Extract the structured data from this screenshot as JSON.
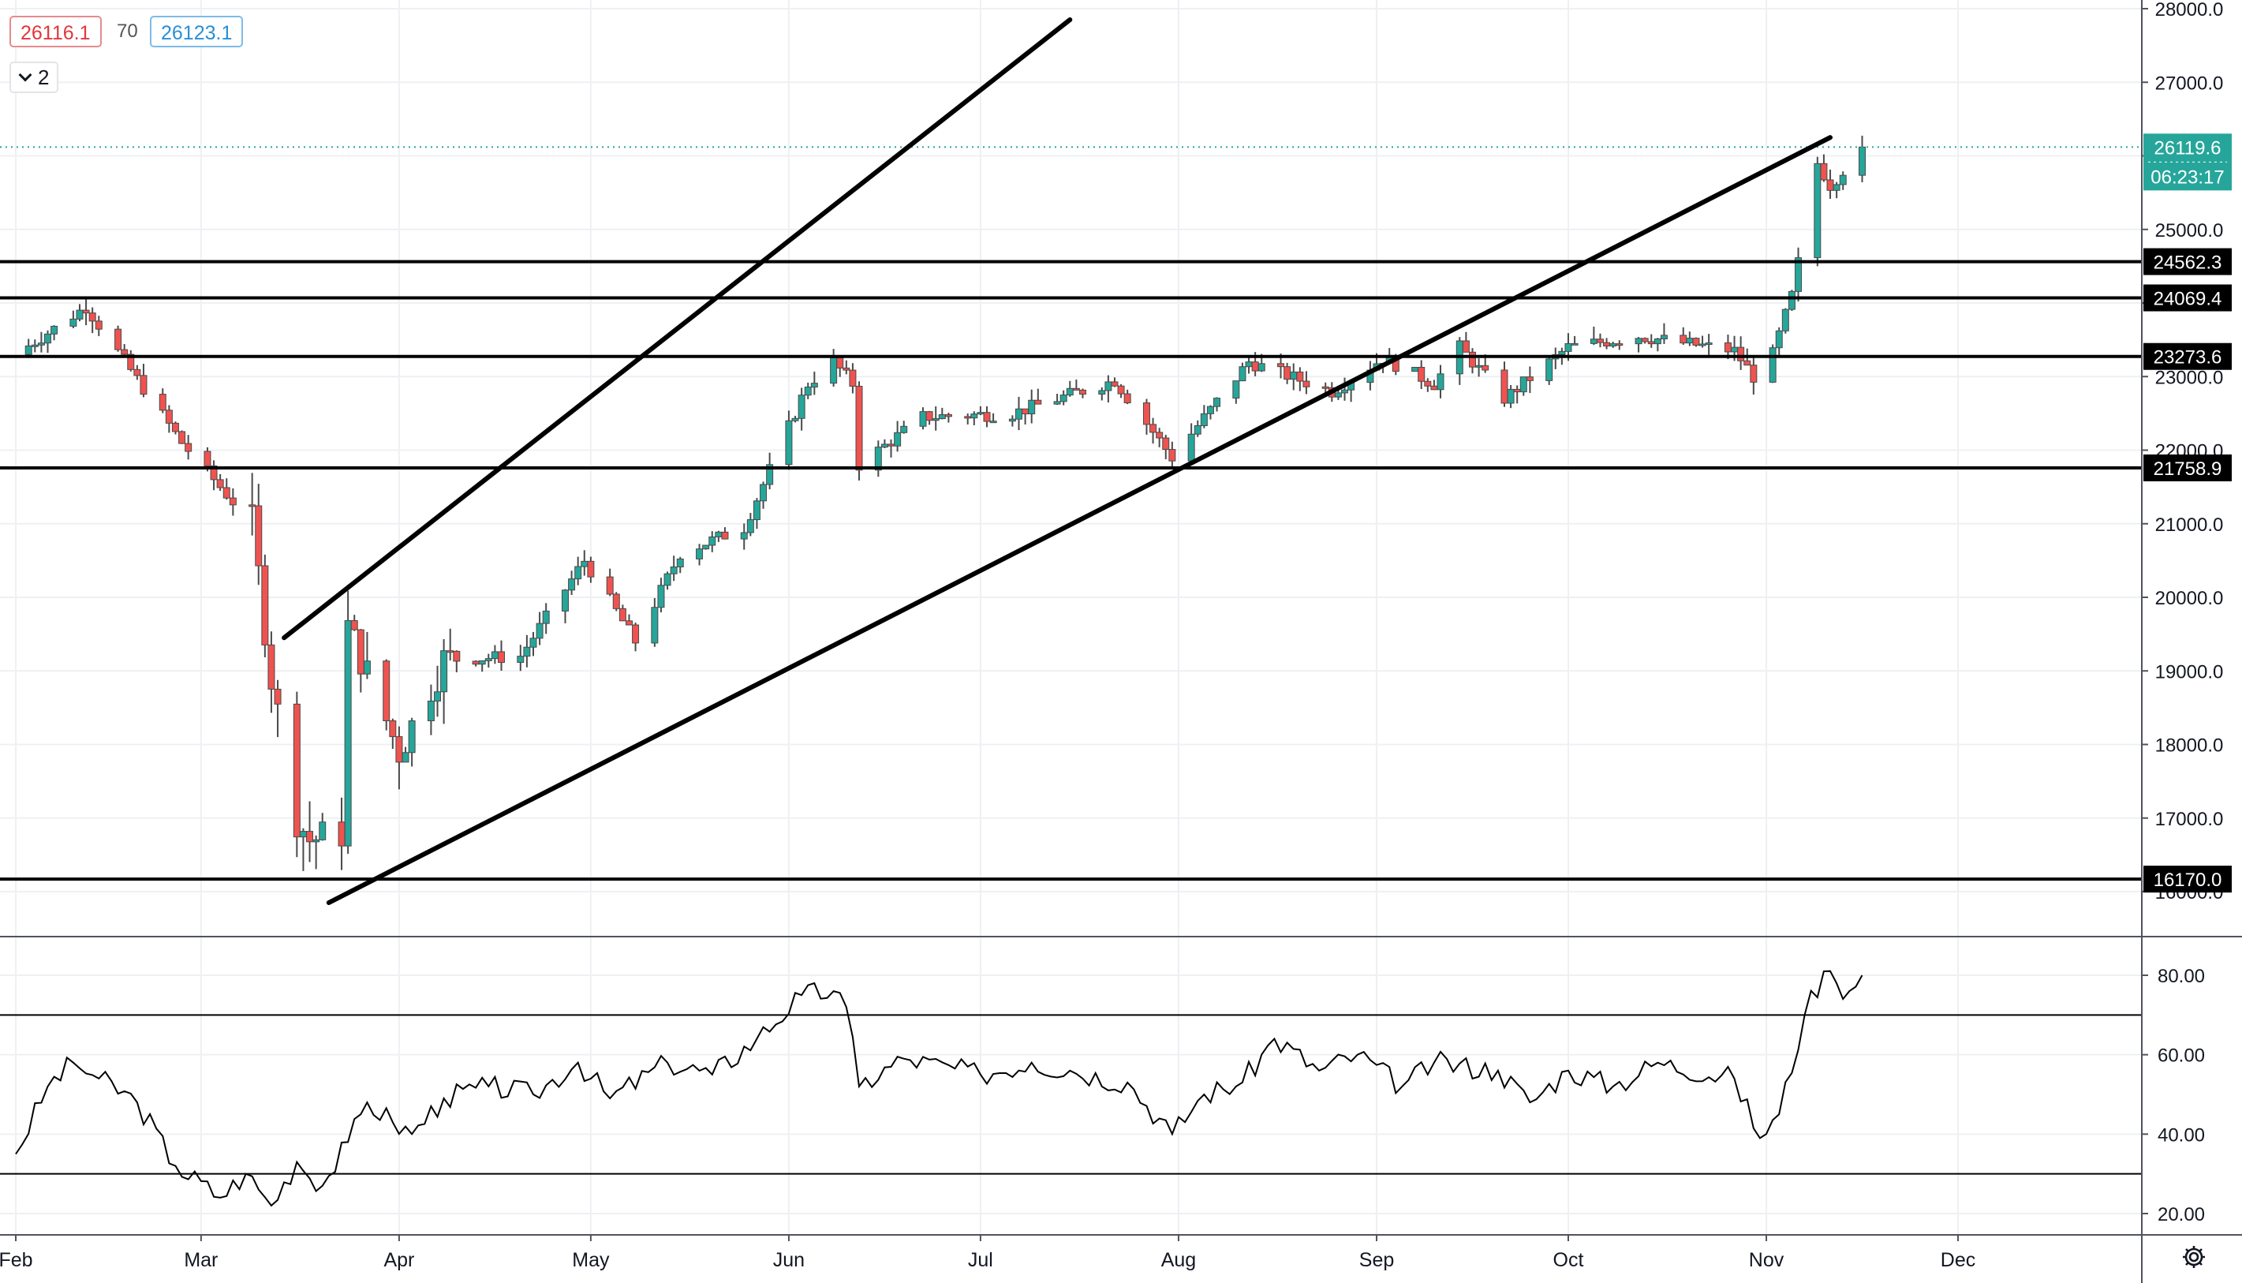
{
  "legend": {
    "bid": "26116.1",
    "spread": "70",
    "ask": "26123.1",
    "collapse_count": "2"
  },
  "icons": {
    "collapse": "chevron-down-icon",
    "settings": "gear-icon"
  },
  "colors": {
    "up": "#26a69a",
    "down": "#ef5350",
    "level_label_bg": "#000000",
    "last_price_bg": "#26a69a",
    "rsi_line": "#000000"
  },
  "last_price": {
    "value": 26119.6,
    "label": "26119.6",
    "countdown": "06:23:17"
  },
  "chart_data": [
    {
      "type": "candlestick",
      "x_axis": {
        "tick_labels": [
          "Feb",
          "Mar",
          "Apr",
          "May",
          "Jun",
          "Jul",
          "Aug",
          "Sep",
          "Oct",
          "Nov",
          "Dec"
        ]
      },
      "y_axis": {
        "min": 15600,
        "max": 28000,
        "tick_labels": [
          "28000.0",
          "27000.0",
          "26000.0",
          "25000.0",
          "24000.0",
          "23000.0",
          "22000.0",
          "21000.0",
          "20000.0",
          "19000.0",
          "18000.0",
          "17000.0",
          "16000.0"
        ],
        "tick_values": [
          28000,
          27000,
          26000,
          25000,
          24000,
          23000,
          22000,
          21000,
          20000,
          19000,
          18000,
          17000,
          16000
        ]
      },
      "grid": true,
      "horizontal_levels": [
        {
          "value": 24562.3,
          "label": "24562.3"
        },
        {
          "value": 24069.4,
          "label": "24069.4"
        },
        {
          "value": 23273.6,
          "label": "23273.6"
        },
        {
          "value": 21758.9,
          "label": "21758.9"
        },
        {
          "value": 16170.0,
          "label": "16170.0"
        }
      ],
      "trend_channel": {
        "upper_line": [
          [
            "2020-03-14",
            19450
          ],
          [
            "2020-07-15",
            27850
          ]
        ],
        "lower_line": [
          [
            "2020-03-21",
            15850
          ],
          [
            "2020-11-11",
            26250
          ]
        ]
      },
      "key_points": [
        [
          "2020-02-01",
          23300
        ],
        [
          "2020-02-12",
          23950
        ],
        [
          "2020-02-27",
          22100
        ],
        [
          "2020-03-09",
          21000
        ],
        [
          "2020-03-12",
          18900
        ],
        [
          "2020-03-16",
          17000
        ],
        [
          "2020-03-18",
          16700
        ],
        [
          "2020-03-23",
          16800
        ],
        [
          "2020-03-24",
          19600
        ],
        [
          "2020-04-01",
          17900
        ],
        [
          "2020-04-08",
          19150
        ],
        [
          "2020-04-20",
          19200
        ],
        [
          "2020-04-30",
          20500
        ],
        [
          "2020-05-08",
          19400
        ],
        [
          "2020-05-15",
          20600
        ],
        [
          "2020-05-25",
          20950
        ],
        [
          "2020-06-04",
          22900
        ],
        [
          "2020-06-08",
          23200
        ],
        [
          "2020-06-11",
          22900
        ],
        [
          "2020-06-12",
          21800
        ],
        [
          "2020-06-22",
          22450
        ],
        [
          "2020-07-06",
          22500
        ],
        [
          "2020-07-22",
          22950
        ],
        [
          "2020-07-31",
          21900
        ],
        [
          "2020-08-12",
          23200
        ],
        [
          "2020-08-25",
          22800
        ],
        [
          "2020-09-02",
          23250
        ],
        [
          "2020-09-10",
          22900
        ],
        [
          "2020-09-14",
          23400
        ],
        [
          "2020-09-21",
          22700
        ],
        [
          "2020-10-01",
          23400
        ],
        [
          "2020-10-12",
          23550
        ],
        [
          "2020-10-27",
          23350
        ],
        [
          "2020-10-30",
          23000
        ],
        [
          "2020-11-02",
          23300
        ],
        [
          "2020-11-05",
          24100
        ],
        [
          "2020-11-09",
          25900
        ],
        [
          "2020-11-11",
          25600
        ],
        [
          "2020-11-16",
          26119.6
        ]
      ]
    },
    {
      "type": "line",
      "x_axis": {
        "tick_labels": [
          "Feb",
          "Mar",
          "Apr",
          "May",
          "Jun",
          "Jul",
          "Aug",
          "Sep",
          "Oct",
          "Nov",
          "Dec"
        ]
      },
      "y_axis": {
        "min": 15,
        "max": 90,
        "tick_labels": [
          "80.00",
          "60.00",
          "40.00",
          "20.00"
        ],
        "tick_values": [
          80,
          60,
          40,
          20
        ]
      },
      "horizontal_levels": [
        {
          "value": 70
        },
        {
          "value": 30
        }
      ],
      "grid": true,
      "key_points": [
        [
          "2020-02-01",
          35
        ],
        [
          "2020-02-06",
          52
        ],
        [
          "2020-02-10",
          58
        ],
        [
          "2020-02-14",
          54
        ],
        [
          "2020-02-20",
          48
        ],
        [
          "2020-02-26",
          32
        ],
        [
          "2020-03-04",
          24
        ],
        [
          "2020-03-08",
          30
        ],
        [
          "2020-03-12",
          22
        ],
        [
          "2020-03-16",
          33
        ],
        [
          "2020-03-20",
          27
        ],
        [
          "2020-03-24",
          38
        ],
        [
          "2020-03-27",
          48
        ],
        [
          "2020-03-31",
          43
        ],
        [
          "2020-04-03",
          40
        ],
        [
          "2020-04-08",
          49
        ],
        [
          "2020-04-15",
          52
        ],
        [
          "2020-04-22",
          50
        ],
        [
          "2020-04-29",
          58
        ],
        [
          "2020-05-04",
          49
        ],
        [
          "2020-05-13",
          58
        ],
        [
          "2020-05-20",
          55
        ],
        [
          "2020-05-27",
          64
        ],
        [
          "2020-06-03",
          75
        ],
        [
          "2020-06-08",
          76
        ],
        [
          "2020-06-10",
          72
        ],
        [
          "2020-06-12",
          52
        ],
        [
          "2020-06-19",
          59
        ],
        [
          "2020-07-01",
          55
        ],
        [
          "2020-07-09",
          58
        ],
        [
          "2020-07-15",
          56
        ],
        [
          "2020-07-24",
          53
        ],
        [
          "2020-07-31",
          40
        ],
        [
          "2020-08-05",
          50
        ],
        [
          "2020-08-11",
          53
        ],
        [
          "2020-08-16",
          64
        ],
        [
          "2020-08-23",
          56
        ],
        [
          "2020-08-29",
          60
        ],
        [
          "2020-09-05",
          52
        ],
        [
          "2020-09-10",
          58
        ],
        [
          "2020-09-20",
          56
        ],
        [
          "2020-09-25",
          48
        ],
        [
          "2020-10-01",
          56
        ],
        [
          "2020-10-08",
          52
        ],
        [
          "2020-10-15",
          58
        ],
        [
          "2020-10-27",
          54
        ],
        [
          "2020-10-31",
          39
        ],
        [
          "2020-11-03",
          45
        ],
        [
          "2020-11-07",
          70
        ],
        [
          "2020-11-10",
          81
        ],
        [
          "2020-11-12",
          78
        ],
        [
          "2020-11-14",
          76
        ],
        [
          "2020-11-16",
          80
        ]
      ]
    }
  ]
}
